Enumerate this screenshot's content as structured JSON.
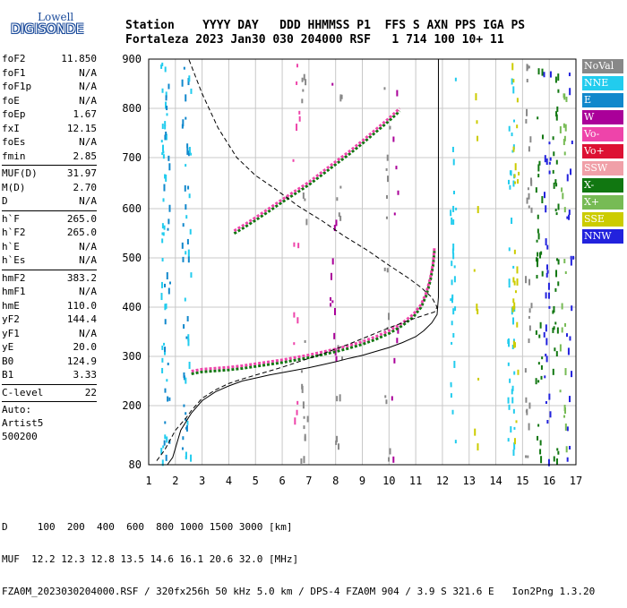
{
  "header": {
    "line1": "Station    YYYY DAY   DDD HHMMSS P1  FFS S AXN PPS IGA PS",
    "line2": "Fortaleza 2023 Jan30 030 204000 RSF   1 714 100 10+ 11"
  },
  "logo": {
    "lowell": "Lowell",
    "digisonde": "DIGISONDE"
  },
  "params": [
    {
      "name": "foF2",
      "value": "11.850"
    },
    {
      "name": "foF1",
      "value": "N/A"
    },
    {
      "name": "foF1p",
      "value": "N/A"
    },
    {
      "name": "foE",
      "value": "N/A"
    },
    {
      "name": "foEp",
      "value": "1.67"
    },
    {
      "name": "fxI",
      "value": "12.15"
    },
    {
      "name": "foEs",
      "value": "N/A"
    },
    {
      "name": "fmin",
      "value": "2.85"
    },
    {
      "sep": true
    },
    {
      "name": "MUF(D)",
      "value": "31.97"
    },
    {
      "name": "M(D)",
      "value": "2.70"
    },
    {
      "name": "D",
      "value": "N/A"
    },
    {
      "sep": true
    },
    {
      "name": "h`F",
      "value": "265.0"
    },
    {
      "name": "h`F2",
      "value": "265.0"
    },
    {
      "name": "h`E",
      "value": "N/A"
    },
    {
      "name": "h`Es",
      "value": "N/A"
    },
    {
      "sep": true
    },
    {
      "name": "hmF2",
      "value": "383.2"
    },
    {
      "name": "hmF1",
      "value": "N/A"
    },
    {
      "name": "hmE",
      "value": "110.0"
    },
    {
      "name": "yF2",
      "value": "144.4"
    },
    {
      "name": "yF1",
      "value": "N/A"
    },
    {
      "name": "yE",
      "value": "20.0"
    },
    {
      "name": "B0",
      "value": "124.9"
    },
    {
      "name": "B1",
      "value": "3.33"
    },
    {
      "sep": true
    },
    {
      "name": "C-level",
      "value": "22"
    },
    {
      "sep": true
    }
  ],
  "auto": {
    "line1": "Auto:",
    "line2": "Artist5",
    "line3": "500200"
  },
  "legend": [
    {
      "label": "NoVal",
      "color": "#888888"
    },
    {
      "label": "NNE",
      "color": "#22ccee"
    },
    {
      "label": "E",
      "color": "#1188cc"
    },
    {
      "label": "W",
      "color": "#aa0099"
    },
    {
      "label": "Vo-",
      "color": "#ee44aa"
    },
    {
      "label": "Vo+",
      "color": "#dd1133"
    },
    {
      "label": "SSW",
      "color": "#f0a0a8"
    },
    {
      "label": "X-",
      "color": "#117711"
    },
    {
      "label": "X+",
      "color": "#77bb55"
    },
    {
      "label": "SSE",
      "color": "#cccc00"
    },
    {
      "label": "NNW",
      "color": "#2222dd"
    }
  ],
  "footer": {
    "line1": "D     100  200  400  600  800 1000 1500 3000 [km]",
    "line2": "MUF  12.2 12.3 12.8 13.5 14.6 16.1 20.6 32.0 [MHz]",
    "line3": "FZA0M_2023030204000.RSF / 320fx256h 50 kHz 5.0 km / DPS-4 FZA0M 904 / 3.9 S 321.6 E   Ion2Png 1.3.20"
  },
  "chart_data": {
    "type": "scatter",
    "xlim": [
      1,
      17
    ],
    "ylim": [
      80,
      900
    ],
    "x_ticks": [
      "1",
      "2",
      "3",
      "4",
      "5",
      "6",
      "7",
      "8",
      "9",
      "10",
      "11",
      "12",
      "13",
      "14",
      "15",
      "16",
      "17"
    ],
    "y_ticks": [
      "80",
      "200",
      "300",
      "400",
      "500",
      "600",
      "700",
      "800",
      "900"
    ],
    "y_tick_values": [
      80,
      200,
      300,
      400,
      500,
      600,
      700,
      800,
      900
    ],
    "grid": true,
    "series": [
      {
        "kind": "o-trace",
        "color_top": "#ee44aa",
        "color_bottom": "#117711",
        "points": [
          [
            2.6,
            270
          ],
          [
            2.8,
            272
          ],
          [
            3.0,
            274
          ],
          [
            3.5,
            276
          ],
          [
            4.0,
            278
          ],
          [
            4.5,
            281
          ],
          [
            5.0,
            285
          ],
          [
            5.5,
            289
          ],
          [
            6.0,
            293
          ],
          [
            6.5,
            298
          ],
          [
            7.0,
            303
          ],
          [
            7.5,
            309
          ],
          [
            8.0,
            315
          ],
          [
            8.5,
            322
          ],
          [
            9.0,
            330
          ],
          [
            9.5,
            340
          ],
          [
            10.0,
            352
          ],
          [
            10.5,
            368
          ],
          [
            10.9,
            385
          ],
          [
            11.2,
            405
          ],
          [
            11.4,
            430
          ],
          [
            11.55,
            460
          ],
          [
            11.65,
            490
          ],
          [
            11.7,
            520
          ]
        ]
      },
      {
        "kind": "second-hop",
        "color_top": "#ee44aa",
        "color_bottom": "#117711",
        "points": [
          [
            4.2,
            555
          ],
          [
            4.6,
            568
          ],
          [
            5.0,
            582
          ],
          [
            5.5,
            600
          ],
          [
            6.0,
            618
          ],
          [
            6.5,
            635
          ],
          [
            7.0,
            652
          ],
          [
            7.5,
            672
          ],
          [
            8.0,
            692
          ],
          [
            8.5,
            712
          ],
          [
            9.0,
            734
          ],
          [
            9.5,
            757
          ],
          [
            10.0,
            780
          ],
          [
            10.4,
            800
          ]
        ]
      },
      {
        "kind": "true-height-profile",
        "style": "solid",
        "color": "#000000",
        "points": [
          [
            1.7,
            80
          ],
          [
            1.9,
            95
          ],
          [
            2.2,
            150
          ],
          [
            2.6,
            185
          ],
          [
            3.0,
            210
          ],
          [
            3.5,
            228
          ],
          [
            4.0,
            240
          ],
          [
            4.5,
            250
          ],
          [
            5.0,
            256
          ],
          [
            5.5,
            262
          ],
          [
            6.0,
            267
          ],
          [
            6.5,
            272
          ],
          [
            7.0,
            277
          ],
          [
            7.5,
            283
          ],
          [
            8.0,
            289
          ],
          [
            8.5,
            296
          ],
          [
            9.0,
            302
          ],
          [
            9.5,
            310
          ],
          [
            10.0,
            318
          ],
          [
            10.5,
            328
          ],
          [
            11.0,
            340
          ],
          [
            11.3,
            352
          ],
          [
            11.6,
            368
          ],
          [
            11.8,
            385
          ],
          [
            11.85,
            420
          ],
          [
            11.85,
            500
          ],
          [
            11.85,
            600
          ],
          [
            11.85,
            700
          ],
          [
            11.85,
            800
          ],
          [
            11.85,
            900
          ]
        ]
      },
      {
        "kind": "model-profile",
        "style": "dashed",
        "color": "#000000",
        "points": [
          [
            1.3,
            88
          ],
          [
            1.6,
            110
          ],
          [
            2.0,
            150
          ],
          [
            2.4,
            175
          ],
          [
            2.6,
            190
          ],
          [
            3.0,
            215
          ],
          [
            3.5,
            232
          ],
          [
            4.0,
            245
          ],
          [
            4.5,
            254
          ],
          [
            5.0,
            262
          ],
          [
            5.5,
            270
          ],
          [
            6.0,
            278
          ],
          [
            6.5,
            287
          ],
          [
            7.0,
            296
          ],
          [
            7.5,
            305
          ],
          [
            8.0,
            315
          ],
          [
            8.5,
            325
          ],
          [
            9.0,
            336
          ],
          [
            9.5,
            347
          ],
          [
            10.0,
            358
          ],
          [
            10.5,
            368
          ],
          [
            11.0,
            378
          ],
          [
            11.4,
            385
          ],
          [
            11.7,
            390
          ],
          [
            11.8,
            400
          ],
          [
            11.6,
            420
          ],
          [
            11.2,
            440
          ],
          [
            10.7,
            460
          ],
          [
            10.0,
            485
          ],
          [
            9.2,
            515
          ],
          [
            8.3,
            545
          ],
          [
            7.5,
            575
          ],
          [
            6.6,
            605
          ],
          [
            5.7,
            640
          ],
          [
            5.0,
            665
          ],
          [
            4.3,
            700
          ],
          [
            3.6,
            760
          ],
          [
            3.0,
            830
          ],
          [
            2.5,
            900
          ]
        ]
      }
    ]
  }
}
